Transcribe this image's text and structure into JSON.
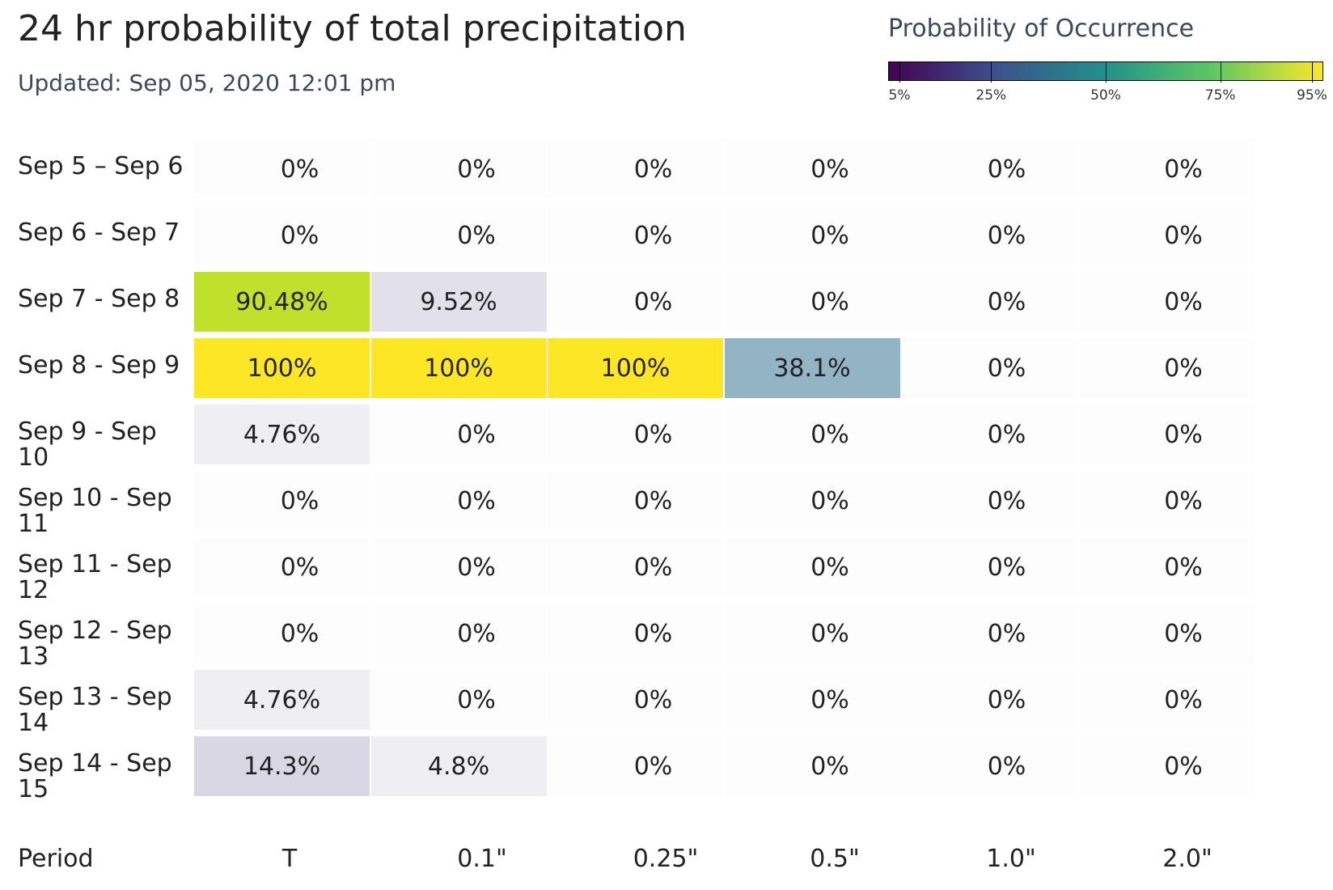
{
  "title": "24 hr probability of total precipitation",
  "subtitle": "Updated: Sep 05, 2020 12:01 pm",
  "legend": {
    "title": "Probability of Occurrence",
    "ticks": [
      {
        "label": "5%",
        "value": 5
      },
      {
        "label": "25%",
        "value": 25
      },
      {
        "label": "50%",
        "value": 50
      },
      {
        "label": "75%",
        "value": 75
      },
      {
        "label": "95%",
        "value": 95
      }
    ],
    "colors": [
      "#440154",
      "#3b528b",
      "#21918c",
      "#5ec962",
      "#fde725"
    ]
  },
  "chart_data": {
    "type": "heatmap",
    "title": "24 hr probability of total precipitation",
    "xlabel": "Period",
    "x_categories": [
      "T",
      "0.1\"",
      "0.25\"",
      "0.5\"",
      "1.0\"",
      "2.0\""
    ],
    "y_categories": [
      "Sep 5 – Sep 6",
      "Sep 6 - Sep 7",
      "Sep 7 - Sep 8",
      "Sep 8 - Sep 9",
      "Sep 9 - Sep 10",
      "Sep 10 - Sep 11",
      "Sep 11 - Sep 12",
      "Sep 12 - Sep 13",
      "Sep 13 - Sep 14",
      "Sep 14 - Sep 15"
    ],
    "values": [
      [
        0,
        0,
        0,
        0,
        0,
        0
      ],
      [
        0,
        0,
        0,
        0,
        0,
        0
      ],
      [
        90.48,
        9.52,
        0,
        0,
        0,
        0
      ],
      [
        100,
        100,
        100,
        38.1,
        0,
        0
      ],
      [
        4.76,
        0,
        0,
        0,
        0,
        0
      ],
      [
        0,
        0,
        0,
        0,
        0,
        0
      ],
      [
        0,
        0,
        0,
        0,
        0,
        0
      ],
      [
        0,
        0,
        0,
        0,
        0,
        0
      ],
      [
        4.76,
        0,
        0,
        0,
        0,
        0
      ],
      [
        14.3,
        4.8,
        0,
        0,
        0,
        0
      ]
    ],
    "labels": [
      [
        "0%",
        "0%",
        "0%",
        "0%",
        "0%",
        "0%"
      ],
      [
        "0%",
        "0%",
        "0%",
        "0%",
        "0%",
        "0%"
      ],
      [
        "90.48%",
        "9.52%",
        "0%",
        "0%",
        "0%",
        "0%"
      ],
      [
        "100%",
        "100%",
        "100%",
        "38.1%",
        "0%",
        "0%"
      ],
      [
        "4.76%",
        "0%",
        "0%",
        "0%",
        "0%",
        "0%"
      ],
      [
        "0%",
        "0%",
        "0%",
        "0%",
        "0%",
        "0%"
      ],
      [
        "0%",
        "0%",
        "0%",
        "0%",
        "0%",
        "0%"
      ],
      [
        "0%",
        "0%",
        "0%",
        "0%",
        "0%",
        "0%"
      ],
      [
        "4.76%",
        "0%",
        "0%",
        "0%",
        "0%",
        "0%"
      ],
      [
        "14.3%",
        "4.8%",
        "0%",
        "0%",
        "0%",
        "0%"
      ]
    ],
    "cell_colors": [
      [
        null,
        null,
        null,
        null,
        null,
        null
      ],
      [
        null,
        null,
        null,
        null,
        null,
        null
      ],
      [
        "#bfe12a",
        "#e2e0e8",
        null,
        null,
        null,
        null
      ],
      [
        "#fde725",
        "#fde725",
        "#fde725",
        "#93b4c4",
        null,
        null
      ],
      [
        "#efeef3",
        null,
        null,
        null,
        null,
        null
      ],
      [
        null,
        null,
        null,
        null,
        null,
        null
      ],
      [
        null,
        null,
        null,
        null,
        null,
        null
      ],
      [
        null,
        null,
        null,
        null,
        null,
        null
      ],
      [
        "#efeef3",
        null,
        null,
        null,
        null,
        null
      ],
      [
        "#d9d7e3",
        "#efeef3",
        null,
        null,
        null,
        null
      ]
    ]
  }
}
